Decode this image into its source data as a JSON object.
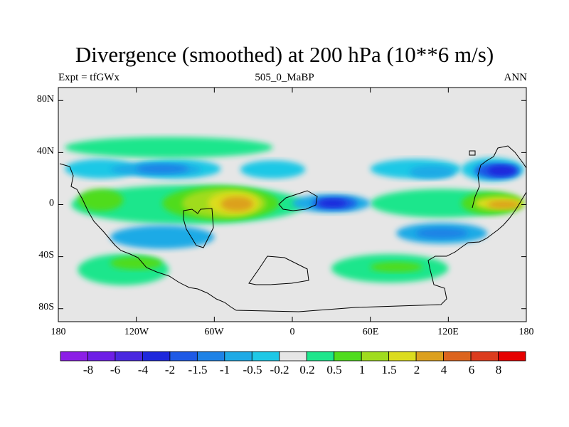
{
  "chart_data": {
    "type": "heatmap",
    "title": "Divergence (smoothed) at 200 hPa (10**6 m/s)",
    "subtitle_left": "Expt = tfGWx",
    "subtitle_center": "505_0_MaBP",
    "subtitle_right": "ANN",
    "x_range": [
      -180,
      180
    ],
    "y_range": [
      -90,
      90
    ],
    "x_ticks": [
      {
        "value": -180,
        "label": "180"
      },
      {
        "value": -120,
        "label": "120W"
      },
      {
        "value": -60,
        "label": "60W"
      },
      {
        "value": 0,
        "label": "0"
      },
      {
        "value": 60,
        "label": "60E"
      },
      {
        "value": 120,
        "label": "120E"
      },
      {
        "value": 180,
        "label": "180"
      }
    ],
    "y_ticks": [
      {
        "value": 80,
        "label": "80N"
      },
      {
        "value": 40,
        "label": "40N"
      },
      {
        "value": 0,
        "label": "0"
      },
      {
        "value": -40,
        "label": "40S"
      },
      {
        "value": -80,
        "label": "80S"
      }
    ],
    "colorbar": {
      "levels": [
        "-8",
        "-6",
        "-4",
        "-2",
        "-1.5",
        "-1",
        "-0.5",
        "-0.2",
        "0.2",
        "0.5",
        "1",
        "1.5",
        "2",
        "4",
        "6",
        "8"
      ],
      "colors": [
        "#8c1ee6",
        "#6e1ee6",
        "#4a28e0",
        "#1e28dc",
        "#1e5ae6",
        "#1e82e6",
        "#1eaae6",
        "#1ec8e6",
        "#e6e6e6",
        "#1ee68c",
        "#50dc1e",
        "#a0dc1e",
        "#dcdc1e",
        "#dca01e",
        "#dc641e",
        "#dc3c1e",
        "#e60000"
      ]
    },
    "fields": [
      {
        "level": -0.5,
        "color": "#1ec8e6",
        "lon": [
          -125,
          -55
        ],
        "lat": [
          20,
          35
        ]
      },
      {
        "level": -0.5,
        "color": "#1ec8e6",
        "lon": [
          -175,
          -120
        ],
        "lat": [
          20,
          35
        ]
      },
      {
        "level": -0.5,
        "color": "#1ec8e6",
        "lon": [
          -40,
          10
        ],
        "lat": [
          20,
          34
        ]
      },
      {
        "level": -0.5,
        "color": "#1ec8e6",
        "lon": [
          60,
          130
        ],
        "lat": [
          20,
          35
        ]
      },
      {
        "level": -0.5,
        "color": "#1ec8e6",
        "lon": [
          130,
          178
        ],
        "lat": [
          18,
          36
        ]
      },
      {
        "level": -1,
        "color": "#1eaae6",
        "lon": [
          -140,
          -70
        ],
        "lat": [
          22,
          32
        ]
      },
      {
        "level": -1,
        "color": "#1eaae6",
        "lon": [
          90,
          125
        ],
        "lat": [
          20,
          30
        ]
      },
      {
        "level": -1.5,
        "color": "#1e82e6",
        "lon": [
          -120,
          -80
        ],
        "lat": [
          24,
          31
        ]
      },
      {
        "level": -2,
        "color": "#1e5ae6",
        "lon": [
          140,
          175
        ],
        "lat": [
          20,
          32
        ]
      },
      {
        "level": -4,
        "color": "#1e28dc",
        "lon": [
          150,
          172
        ],
        "lat": [
          22,
          30
        ]
      },
      {
        "level": 0.5,
        "color": "#1ee68c",
        "lon": [
          -175,
          -15
        ],
        "lat": [
          36,
          52
        ]
      },
      {
        "level": 0.5,
        "color": "#1ee68c",
        "lon": [
          -170,
          10
        ],
        "lat": [
          -15,
          15
        ]
      },
      {
        "level": 1,
        "color": "#50dc1e",
        "lon": [
          -165,
          -130
        ],
        "lat": [
          -5,
          12
        ]
      },
      {
        "level": 1,
        "color": "#50dc1e",
        "lon": [
          -100,
          -10
        ],
        "lat": [
          -12,
          14
        ]
      },
      {
        "level": 1.5,
        "color": "#a0dc1e",
        "lon": [
          -85,
          -20
        ],
        "lat": [
          -10,
          12
        ]
      },
      {
        "level": 2,
        "color": "#dcdc1e",
        "lon": [
          -65,
          -25
        ],
        "lat": [
          -8,
          10
        ]
      },
      {
        "level": 4,
        "color": "#dca01e",
        "lon": [
          -55,
          -30
        ],
        "lat": [
          -5,
          6
        ]
      },
      {
        "level": 0.5,
        "color": "#1ee68c",
        "lon": [
          60,
          170
        ],
        "lat": [
          -10,
          12
        ]
      },
      {
        "level": 1,
        "color": "#50dc1e",
        "lon": [
          130,
          178
        ],
        "lat": [
          -8,
          10
        ]
      },
      {
        "level": 2,
        "color": "#dcdc1e",
        "lon": [
          140,
          178
        ],
        "lat": [
          -4,
          6
        ]
      },
      {
        "level": 4,
        "color": "#dca01e",
        "lon": [
          150,
          175
        ],
        "lat": [
          -3,
          3
        ]
      },
      {
        "level": -1,
        "color": "#1eaae6",
        "lon": [
          0,
          60
        ],
        "lat": [
          -6,
          8
        ]
      },
      {
        "level": -2,
        "color": "#1e5ae6",
        "lon": [
          15,
          50
        ],
        "lat": [
          -4,
          6
        ]
      },
      {
        "level": -4,
        "color": "#1e28dc",
        "lon": [
          20,
          42
        ],
        "lat": [
          -2,
          4
        ]
      },
      {
        "level": -1,
        "color": "#1eaae6",
        "lon": [
          80,
          150
        ],
        "lat": [
          -30,
          -14
        ]
      },
      {
        "level": -1.5,
        "color": "#1e82e6",
        "lon": [
          95,
          135
        ],
        "lat": [
          -26,
          -18
        ]
      },
      {
        "level": -1,
        "color": "#1eaae6",
        "lon": [
          -140,
          -60
        ],
        "lat": [
          -34,
          -16
        ]
      },
      {
        "level": 0.5,
        "color": "#1ee68c",
        "lon": [
          -165,
          -95
        ],
        "lat": [
          -62,
          -38
        ]
      },
      {
        "level": 1,
        "color": "#50dc1e",
        "lon": [
          -140,
          -100
        ],
        "lat": [
          -50,
          -40
        ]
      },
      {
        "level": 0.5,
        "color": "#1ee68c",
        "lon": [
          30,
          120
        ],
        "lat": [
          -60,
          -38
        ]
      },
      {
        "level": 1,
        "color": "#50dc1e",
        "lon": [
          60,
          100
        ],
        "lat": [
          -52,
          -44
        ]
      }
    ]
  }
}
